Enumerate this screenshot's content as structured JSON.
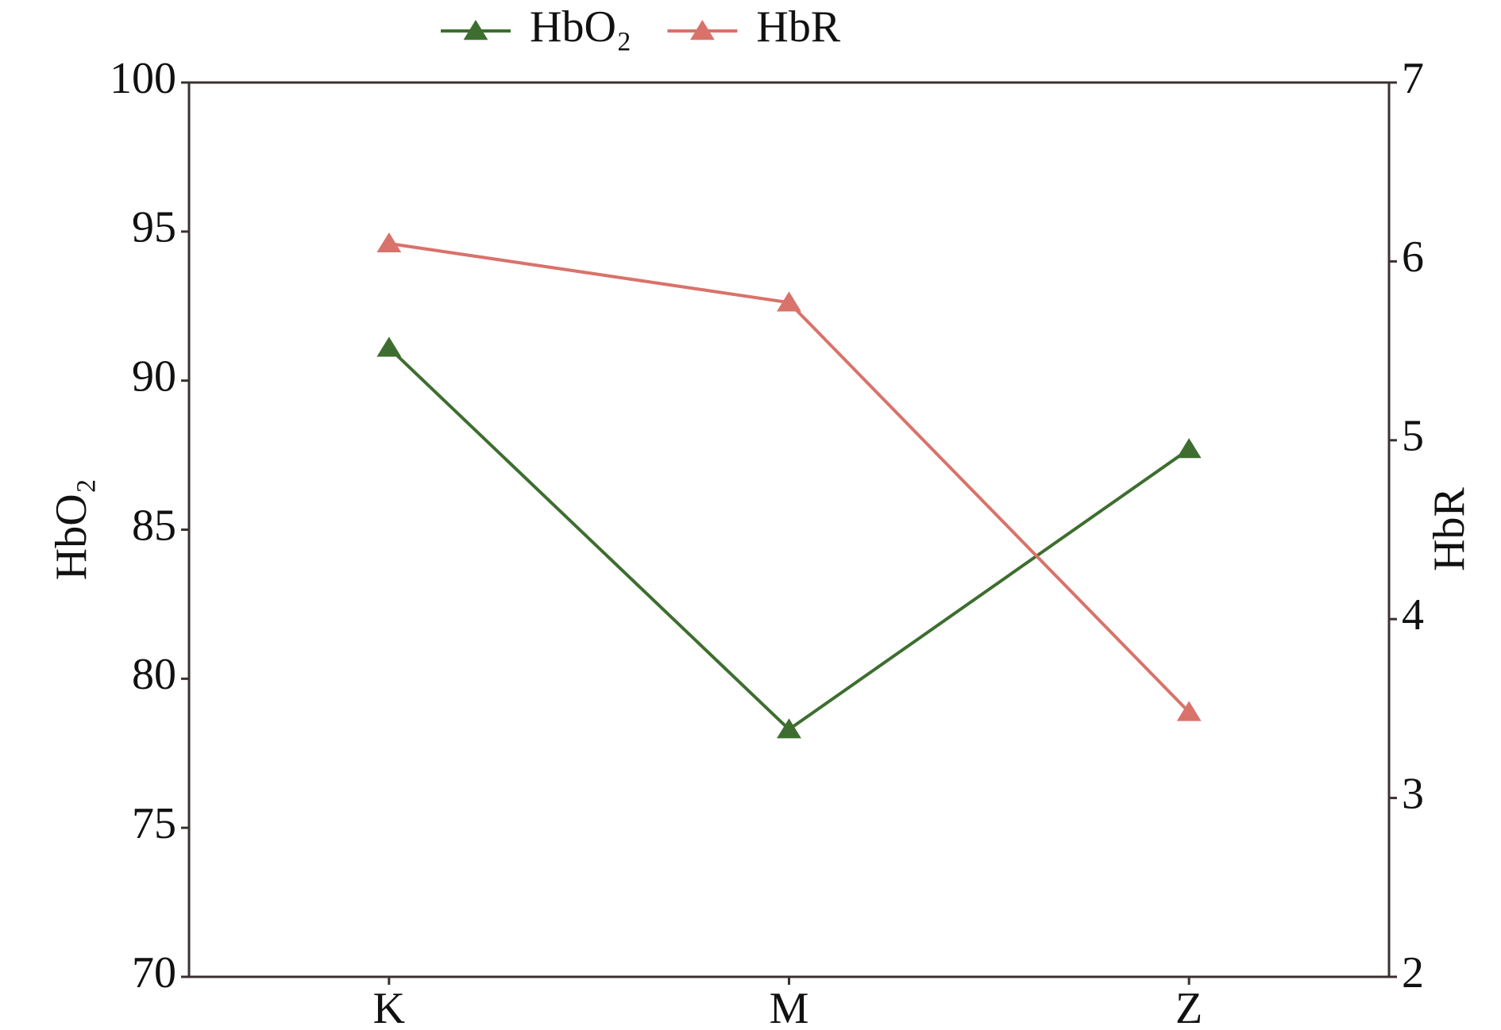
{
  "chart_data": {
    "type": "line",
    "categories": [
      "K",
      "M",
      "Z"
    ],
    "y_label": "HbO₂",
    "y2_label": "HbR",
    "ylim": [
      70,
      100
    ],
    "yticks": [
      70,
      75,
      80,
      85,
      90,
      95,
      100
    ],
    "y2lim": [
      2,
      7
    ],
    "y2ticks": [
      2,
      3,
      4,
      5,
      6,
      7
    ],
    "legend": "top",
    "series": [
      {
        "name": "HbO₂",
        "color": "#3d6e2f",
        "values": [
          91.1,
          78.3,
          87.7
        ]
      },
      {
        "name": "HbR",
        "color": "#d9726b",
        "axis": "y2",
        "values": [
          6.1,
          5.77,
          3.48
        ]
      }
    ]
  }
}
